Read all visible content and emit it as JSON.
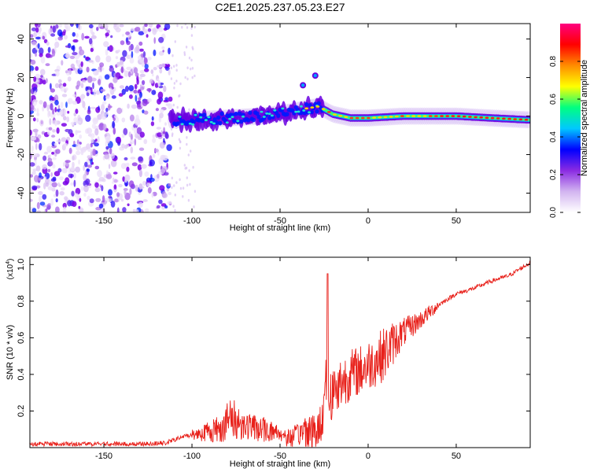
{
  "title": "C2E1.2025.237.05.23.E27",
  "chart_data": [
    {
      "type": "heatmap",
      "name": "spectrogram",
      "title": "C2E1.2025.237.05.23.E27",
      "xlabel": "Height of straight line (km)",
      "ylabel": "Frequency (Hz)",
      "xlim": [
        -192,
        92
      ],
      "ylim": [
        -50,
        48
      ],
      "xticks": [
        -150,
        -100,
        -50,
        0,
        50
      ],
      "xtick_labels": [
        "-150",
        "-100",
        "-50",
        "0",
        "50"
      ],
      "yticks": [
        -40,
        -20,
        0,
        20,
        40
      ],
      "ytick_labels": [
        "-40",
        "-20",
        "0",
        "20",
        "40"
      ],
      "noise_region_x": [
        -192,
        -112
      ],
      "ridge": {
        "description": "dominant frequency ridge",
        "x": [
          -112,
          -100,
          -80,
          -60,
          -45,
          -35,
          -28,
          -20,
          -10,
          0,
          20,
          50,
          70,
          92
        ],
        "y": [
          -2,
          -2,
          -1,
          0,
          2,
          4,
          5,
          1,
          -1,
          -1,
          0,
          0,
          -1,
          -2
        ]
      },
      "outliers": [
        {
          "x": -37,
          "y": 16
        },
        {
          "x": -30,
          "y": 21
        }
      ],
      "colorbar": {
        "label": "Normalized spectral amplitude",
        "range": [
          0,
          1
        ],
        "ticks": [
          0.0,
          0.2,
          0.4,
          0.6,
          0.8
        ],
        "tick_labels": [
          "0.0",
          "0.2",
          "0.4",
          "0.6",
          "0.8"
        ],
        "colors": [
          "#ffffff",
          "#d2b4f0",
          "#8a2be2",
          "#0000ff",
          "#00c8ff",
          "#00ff80",
          "#ffff00",
          "#ff8c00",
          "#ff0000",
          "#ff0080"
        ]
      }
    },
    {
      "type": "line",
      "name": "snr",
      "xlabel": "Height of straight line (km)",
      "ylabel": "SNR (10 * v/v)",
      "y_multiplier": "(x10",
      "y_multiplier_exp": "4",
      "y_multiplier_close": ")",
      "xlim": [
        -192,
        92
      ],
      "ylim": [
        0,
        1.04
      ],
      "xticks": [
        -150,
        -100,
        -50,
        0,
        50
      ],
      "xtick_labels": [
        "-150",
        "-100",
        "-50",
        "0",
        "50"
      ],
      "yticks": [
        0.2,
        0.4,
        0.6,
        0.8,
        1.0
      ],
      "ytick_labels": [
        "0.2",
        "0.4",
        "0.6",
        "0.8",
        "1.0"
      ],
      "color": "#e8201a",
      "series": [
        {
          "name": "SNR",
          "x": [
            -192,
            -170,
            -150,
            -130,
            -115,
            -105,
            -95,
            -85,
            -78,
            -70,
            -60,
            -50,
            -45,
            -40,
            -35,
            -30,
            -27,
            -25,
            -24,
            -23,
            -22,
            -20,
            -15,
            -10,
            -5,
            0,
            5,
            10,
            15,
            20,
            30,
            40,
            50,
            60,
            70,
            80,
            92
          ],
          "y": [
            0.02,
            0.02,
            0.02,
            0.02,
            0.025,
            0.06,
            0.08,
            0.1,
            0.16,
            0.12,
            0.1,
            0.08,
            0.05,
            0.07,
            0.1,
            0.08,
            0.12,
            0.25,
            0.42,
            0.3,
            0.28,
            0.3,
            0.36,
            0.4,
            0.42,
            0.45,
            0.48,
            0.52,
            0.58,
            0.63,
            0.7,
            0.78,
            0.84,
            0.87,
            0.91,
            0.94,
            1.01
          ]
        }
      ],
      "spike": {
        "x": -23,
        "y": 0.95
      },
      "noise_envelope": {
        "x": [
          -100,
          -90,
          -78,
          -70,
          -60,
          -50,
          -40,
          -35,
          -30,
          -27,
          -20,
          -10,
          0,
          10,
          20,
          30,
          40
        ],
        "amp": [
          0.03,
          0.06,
          0.12,
          0.08,
          0.07,
          0.05,
          0.06,
          0.12,
          0.1,
          0.12,
          0.16,
          0.14,
          0.14,
          0.15,
          0.08,
          0.05,
          0.03
        ]
      }
    }
  ]
}
